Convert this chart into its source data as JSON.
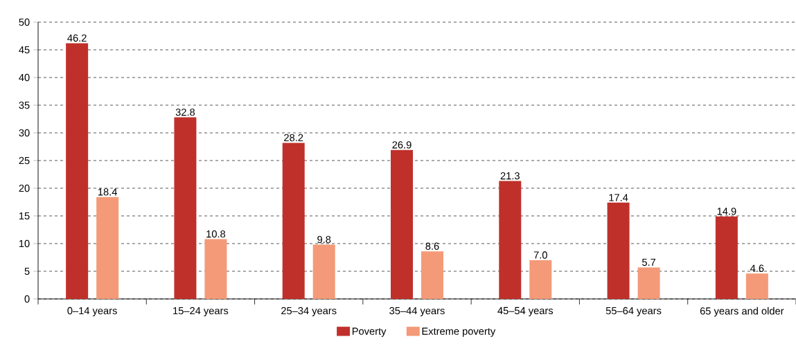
{
  "chart_data": {
    "type": "bar",
    "categories": [
      "0–14 years",
      "15–24 years",
      "25–34 years",
      "35–44 years",
      "45–54 years",
      "55–64 years",
      "65 years and older"
    ],
    "series": [
      {
        "name": "Poverty",
        "color": "#c0302a",
        "values": [
          46.2,
          32.8,
          28.2,
          26.9,
          21.3,
          17.4,
          14.9
        ],
        "value_labels": [
          "46.2",
          "32.8",
          "28.2",
          "26.9",
          "21.3",
          "17.4",
          "14.9"
        ]
      },
      {
        "name": "Extreme poverty",
        "color": "#f49a78",
        "values": [
          18.4,
          10.8,
          9.8,
          8.6,
          7.0,
          5.7,
          4.6
        ],
        "value_labels": [
          "18.4",
          "10.8",
          "9.8",
          "8.6",
          "7.0",
          "5.7",
          "4.6"
        ]
      }
    ],
    "ylim": [
      0,
      50
    ],
    "yticks": [
      0,
      5,
      10,
      15,
      20,
      25,
      30,
      35,
      40,
      45,
      50
    ],
    "grid": "y",
    "legend": "bottom"
  }
}
